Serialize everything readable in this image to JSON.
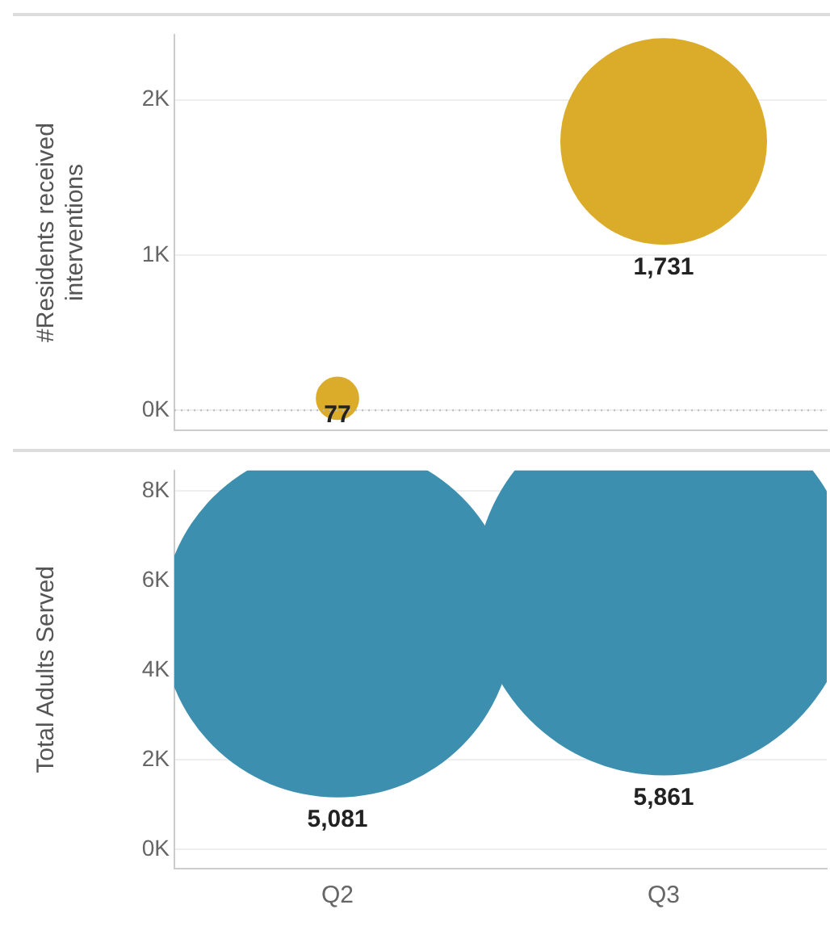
{
  "chart_data": [
    {
      "type": "bubble",
      "ylabel": "#Residents received interventions",
      "categories": [
        null,
        null
      ],
      "series": [
        {
          "color": "#dbab2a",
          "values": [
            77,
            1731
          ],
          "sizes": [
            0.044,
            1
          ],
          "value_labels": [
            "77",
            "1,731"
          ]
        }
      ],
      "ylim": [
        -130,
        2420
      ],
      "yticks": [
        {
          "value": 0,
          "label": "0K"
        },
        {
          "value": 1000,
          "label": "1K"
        },
        {
          "value": 2000,
          "label": "2K"
        }
      ],
      "ref_lines": [
        {
          "axis": "y",
          "value": 0,
          "line_style": "dotted",
          "color": "#bbbbbb"
        }
      ],
      "grid": "y",
      "legend": false,
      "tick_labels": "y"
    },
    {
      "type": "bubble",
      "ylabel": "Total Adults Served",
      "categories": [
        "Q2",
        "Q3"
      ],
      "series": [
        {
          "color": "#3c8fae",
          "values": [
            5081,
            5861
          ],
          "sizes": [
            0.867,
            1
          ],
          "value_labels": [
            "5,081",
            "5,861"
          ]
        }
      ],
      "ylim": [
        -430,
        8450
      ],
      "yticks": [
        {
          "value": 0,
          "label": "0K"
        },
        {
          "value": 2000,
          "label": "2K"
        },
        {
          "value": 4000,
          "label": "4K"
        },
        {
          "value": 6000,
          "label": "6K"
        },
        {
          "value": 8000,
          "label": "8K"
        }
      ],
      "grid": "y",
      "legend": false
    }
  ]
}
